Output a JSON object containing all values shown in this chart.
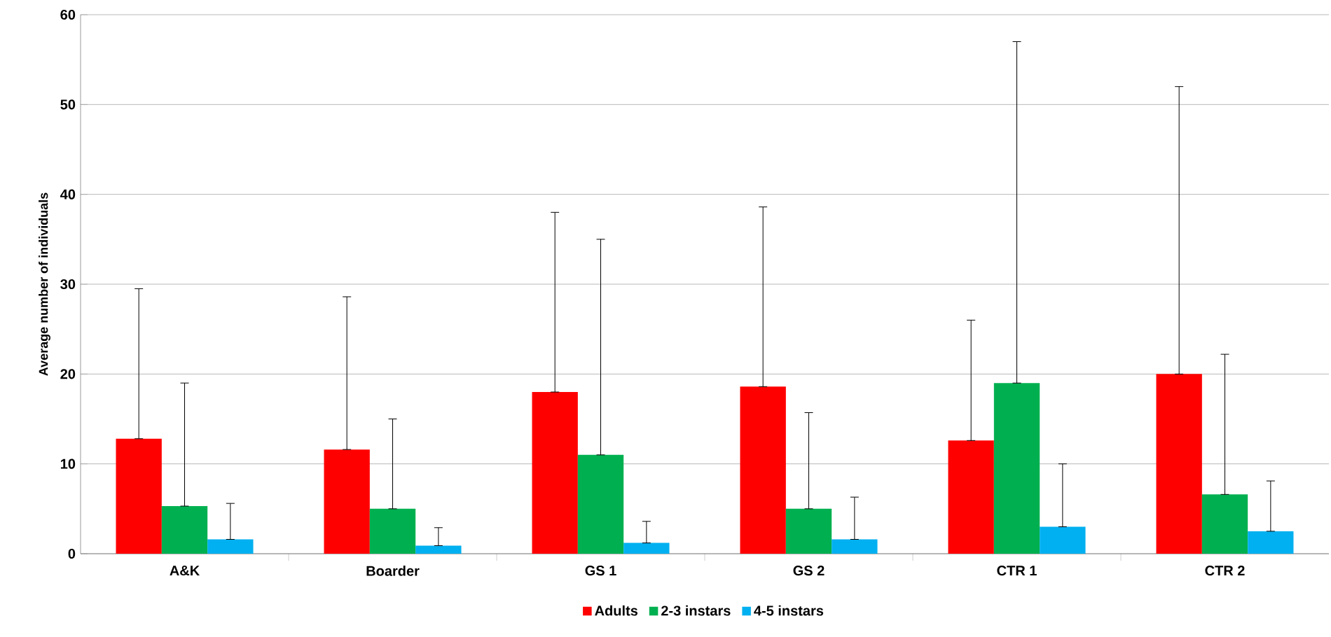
{
  "chart_data": {
    "type": "bar",
    "ylabel": "Average number of individuals",
    "categories": [
      "A&K",
      "Boarder",
      "GS 1",
      "GS 2",
      "CTR 1",
      "CTR 2"
    ],
    "series": [
      {
        "name": "Adults",
        "color": "#ff0000",
        "values": [
          12.8,
          11.6,
          18,
          18.6,
          12.6,
          20
        ],
        "errors": [
          [
            12.8,
            29.5
          ],
          [
            11.6,
            28.6
          ],
          [
            18,
            38
          ],
          [
            18.6,
            38.6
          ],
          [
            12.6,
            26
          ],
          [
            20,
            52
          ]
        ]
      },
      {
        "name": "2-3 instars",
        "color": "#00b050",
        "values": [
          5.3,
          5.0,
          11,
          5.0,
          19,
          6.6
        ],
        "errors": [
          [
            5.3,
            19
          ],
          [
            5.0,
            15
          ],
          [
            11,
            35
          ],
          [
            5.0,
            15.7
          ],
          [
            19,
            57
          ],
          [
            6.6,
            22.2
          ]
        ]
      },
      {
        "name": "4-5 instars",
        "color": "#00b0f0",
        "values": [
          1.6,
          0.9,
          1.2,
          1.6,
          3.0,
          2.5
        ],
        "errors": [
          [
            1.6,
            5.6
          ],
          [
            0.9,
            2.9
          ],
          [
            1.2,
            3.6
          ],
          [
            1.6,
            6.3
          ],
          [
            3.0,
            10
          ],
          [
            2.5,
            8.1
          ]
        ]
      }
    ],
    "ylim": [
      0,
      60
    ],
    "yticks": [
      0,
      10,
      20,
      30,
      40,
      50,
      60
    ],
    "grid": "y",
    "legend": "bottom"
  }
}
